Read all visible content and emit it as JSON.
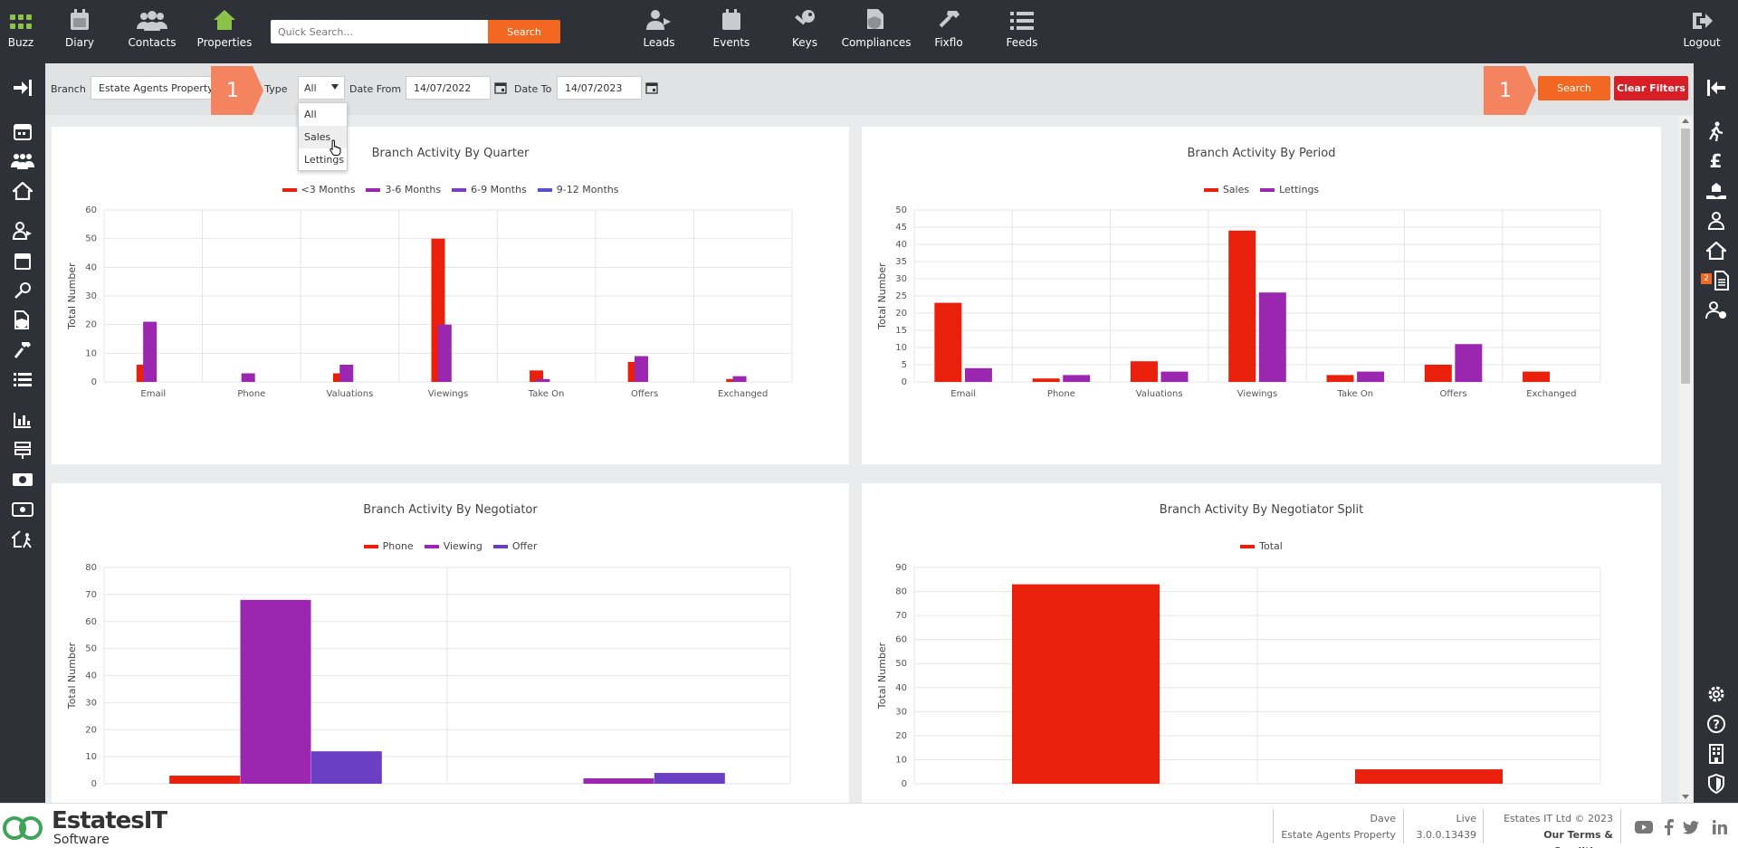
{
  "topnav": {
    "items": [
      {
        "label": "Buzz",
        "icon": "grid-icon"
      },
      {
        "label": "Diary",
        "icon": "calendar-icon"
      },
      {
        "label": "Contacts",
        "icon": "people-icon"
      },
      {
        "label": "Properties",
        "icon": "house-icon"
      },
      {
        "label": "Leads",
        "icon": "lead-person-icon"
      },
      {
        "label": "Events",
        "icon": "calendar-icon"
      },
      {
        "label": "Keys",
        "icon": "key-icon"
      },
      {
        "label": "Compliances",
        "icon": "document-shield-icon"
      },
      {
        "label": "Fixflo",
        "icon": "hammer-icon"
      },
      {
        "label": "Feeds",
        "icon": "list-icon"
      },
      {
        "label": "Logout",
        "icon": "logout-icon"
      }
    ],
    "search_placeholder": "Quick Search...",
    "search_button": "Search"
  },
  "filters": {
    "branch_label": "Branch",
    "branch_value": "Estate Agents Property",
    "type_label": "e Type",
    "type_value": "All",
    "date_from_label": "Date From",
    "date_from_value": "14/07/2022",
    "date_to_label": "Date To",
    "date_to_value": "14/07/2023",
    "search_button": "Search",
    "clear_button": "Clear Filters",
    "callout_left": "1",
    "callout_right": "1",
    "type_options": [
      "All",
      "Sales",
      "Lettings"
    ]
  },
  "right_sidebar": {
    "badge": "2"
  },
  "chart_data": [
    {
      "type": "bar",
      "title": "Branch Activity By Quarter",
      "ylabel": "Total Number",
      "categories": [
        "Email",
        "Phone",
        "Valuations",
        "Viewings",
        "Take On",
        "Offers",
        "Exchanged"
      ],
      "ylim": [
        0,
        60
      ],
      "yticks": [
        0,
        10,
        20,
        30,
        40,
        50,
        60
      ],
      "series": [
        {
          "name": "<3 Months",
          "color": "#e8200c",
          "values": [
            6,
            0,
            3,
            50,
            4,
            7,
            1
          ]
        },
        {
          "name": "3-6 Months",
          "color": "#9b27b0",
          "values": [
            21,
            3,
            6,
            20,
            1,
            9,
            2
          ]
        },
        {
          "name": "6-9 Months",
          "color": "#7b3fc4",
          "values": [
            0,
            0,
            0,
            0,
            0,
            0,
            0
          ]
        },
        {
          "name": "9-12 Months",
          "color": "#5b4fd0",
          "values": [
            0,
            0,
            0,
            0,
            0,
            0,
            0
          ]
        }
      ]
    },
    {
      "type": "bar",
      "title": "Branch Activity By Period",
      "ylabel": "Total Number",
      "categories": [
        "Email",
        "Phone",
        "Valuations",
        "Viewings",
        "Take On",
        "Offers",
        "Exchanged"
      ],
      "ylim": [
        0,
        50
      ],
      "yticks": [
        0,
        5,
        10,
        15,
        20,
        25,
        30,
        35,
        40,
        45,
        50
      ],
      "series": [
        {
          "name": "Sales",
          "color": "#e8200c",
          "values": [
            23,
            1,
            6,
            44,
            2,
            5,
            3
          ]
        },
        {
          "name": "Lettings",
          "color": "#9b27b0",
          "values": [
            4,
            2,
            3,
            26,
            3,
            11,
            0
          ]
        }
      ]
    },
    {
      "type": "bar",
      "title": "Branch Activity By Negotiator",
      "ylabel": "Total Number",
      "categories": [
        "",
        ""
      ],
      "ylim": [
        0,
        80
      ],
      "yticks": [
        0,
        10,
        20,
        30,
        40,
        50,
        60,
        70,
        80
      ],
      "series": [
        {
          "name": "Phone",
          "color": "#e8200c",
          "values": [
            3,
            0
          ]
        },
        {
          "name": "Viewing",
          "color": "#9b27b0",
          "values": [
            68,
            2
          ]
        },
        {
          "name": "Offer",
          "color": "#6a3fc4",
          "values": [
            12,
            4
          ]
        }
      ]
    },
    {
      "type": "bar",
      "title": "Branch Activity By Negotiator Split",
      "ylabel": "Total Number",
      "categories": [
        "",
        ""
      ],
      "ylim": [
        0,
        90
      ],
      "yticks": [
        0,
        10,
        20,
        30,
        40,
        50,
        60,
        70,
        80,
        90
      ],
      "series": [
        {
          "name": "Total",
          "color": "#e8200c",
          "values": [
            83,
            6
          ]
        }
      ]
    }
  ],
  "footer": {
    "logo_main": "EstatesIT",
    "logo_sub": "Software",
    "user": "Dave",
    "branch": "Estate Agents Property",
    "env": "Live",
    "version": "3.0.0.13439",
    "copyright": "Estates IT Ltd © 2023",
    "terms": "Our Terms & Conditions"
  }
}
